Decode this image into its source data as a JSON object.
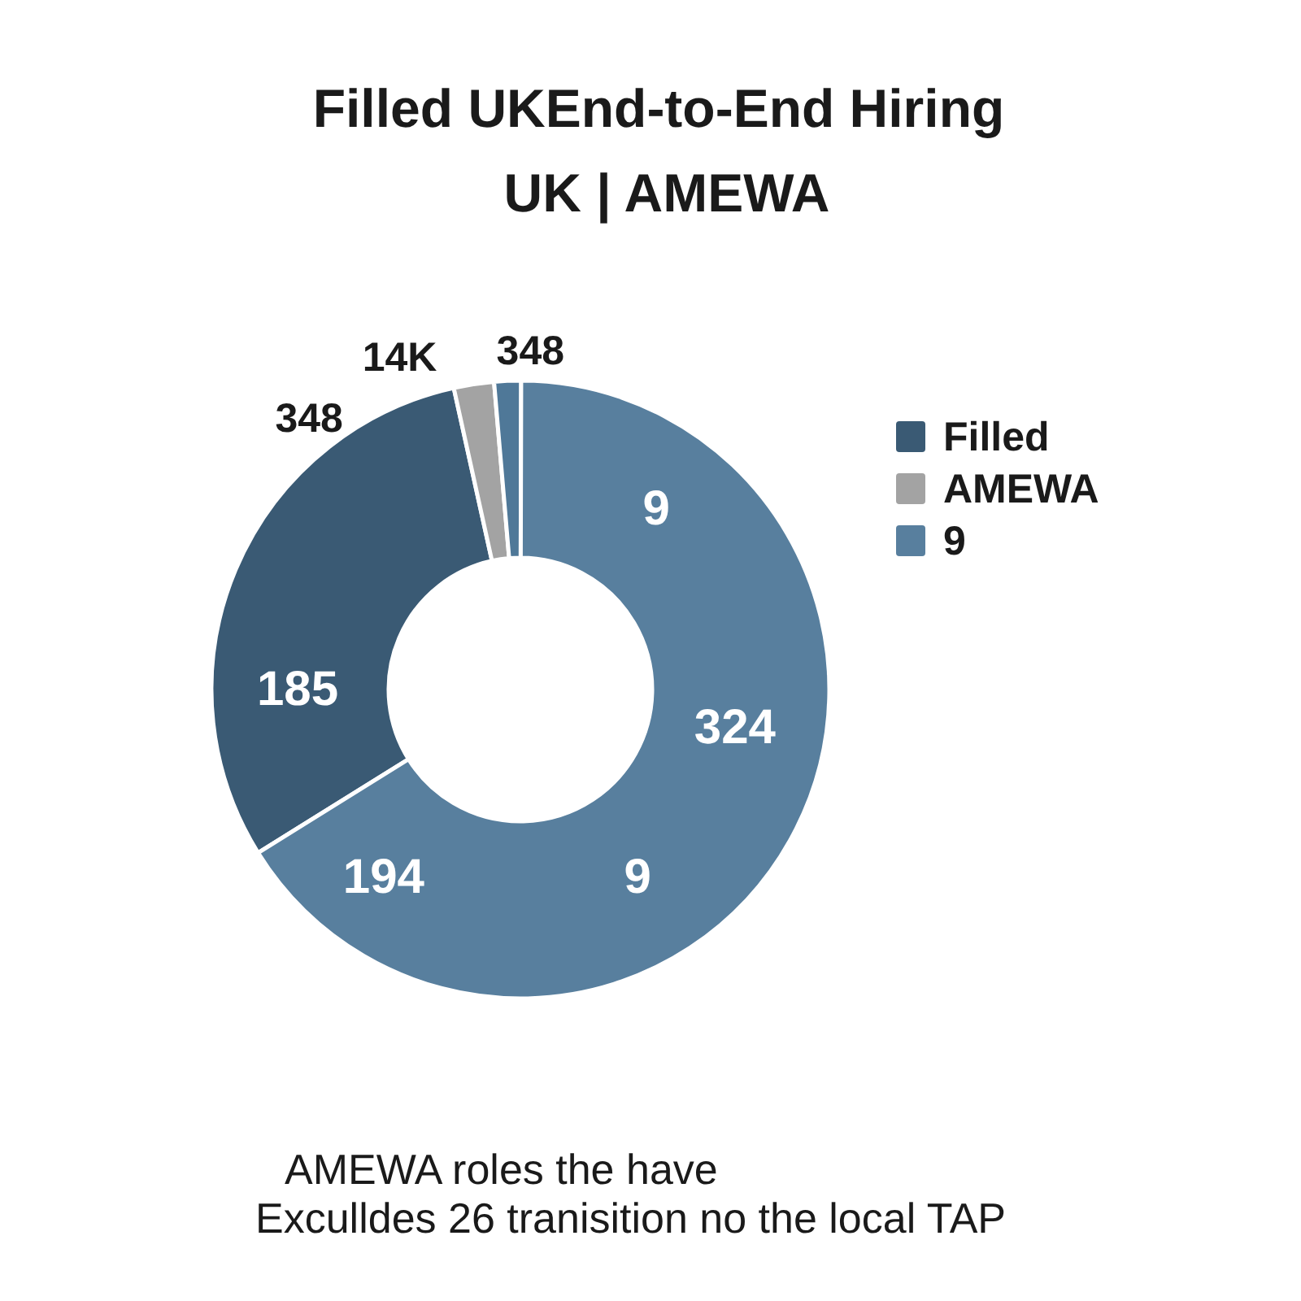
{
  "chart_data": {
    "type": "donut",
    "title": "Filled UKEnd-to-End Hiring",
    "subtitle": "UK | AMEWA",
    "categories": [
      "Filled",
      "AMEWA",
      null,
      "9"
    ],
    "values": [
      30.4,
      2.1,
      1.4,
      66.1
    ],
    "colors": [
      "#3a5a74",
      "#a3a3a3",
      "#4f7898",
      "#587f9e"
    ],
    "legend": "right",
    "annotations": [
      "9",
      "324",
      "9",
      "194",
      "185",
      "348",
      "14K",
      "348",
      "AMEWA roles the have",
      "Exculldes 26 tranisition no the local TAP"
    ]
  }
}
